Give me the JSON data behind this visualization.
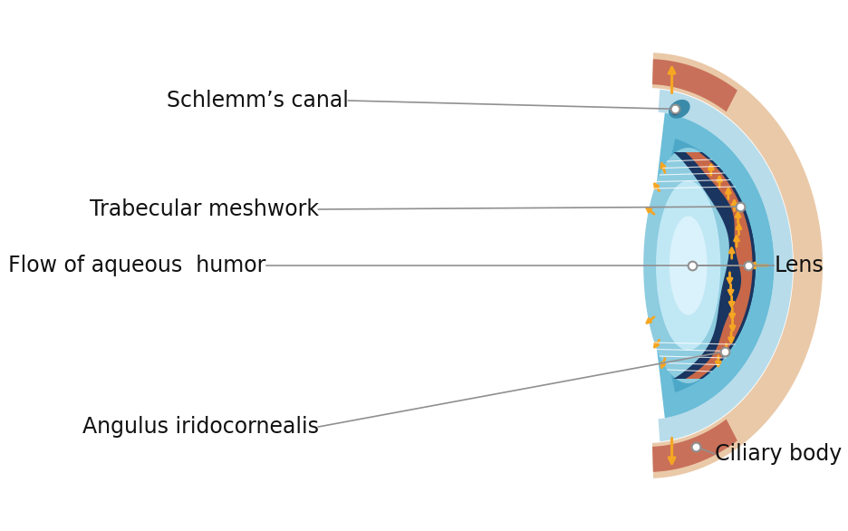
{
  "bg_color": "#ffffff",
  "labels": {
    "schlemms_canal": "Schlemm’s canal",
    "trabecular_meshwork": "Trabecular meshwork",
    "flow": "Flow of aqueous  humor",
    "lens": "Lens",
    "angulus": "Angulus iridocornealis",
    "ciliary_body": "Ciliary body"
  },
  "colors": {
    "skin_peach": "#eac9a8",
    "skin_dark_red": "#c8705a",
    "sclera_light": "#b8dcea",
    "cornea_blue": "#6bbdd8",
    "cornea_deep": "#4da8c8",
    "aqueous_dark": "#2a6a90",
    "trabecular_dark": "#1a3560",
    "iris_red": "#c86848",
    "lens_outer": "#8ecce0",
    "lens_inner": "#c0e8f4",
    "lens_core": "#daf2fc",
    "arrow_orange": "#f5a623",
    "label_color": "#111111",
    "line_color": "#909090",
    "dot_color": "#909090",
    "schlemm_blue": "#3a8aaa"
  },
  "figsize": [
    9.36,
    5.86
  ],
  "dpi": 100
}
